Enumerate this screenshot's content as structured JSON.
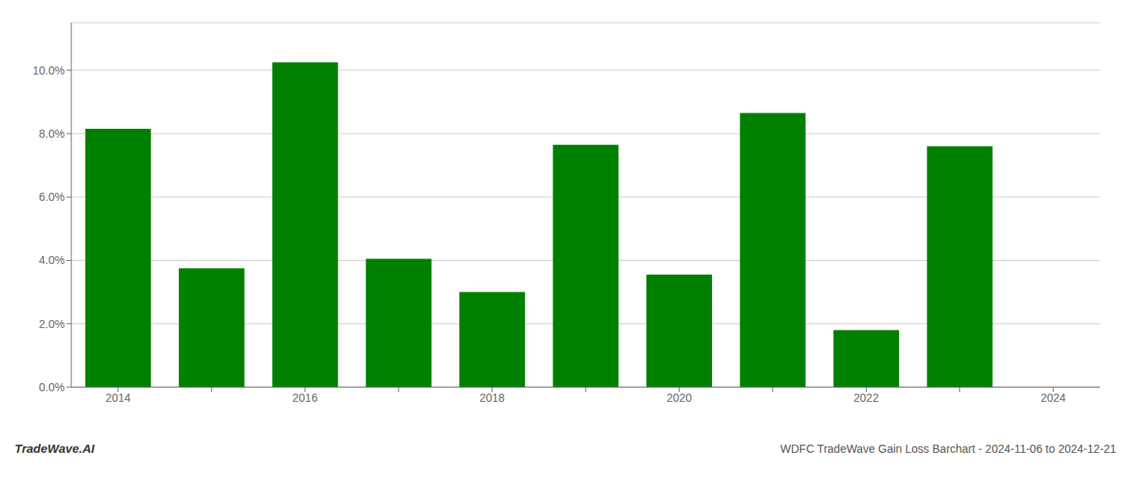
{
  "chart_data": {
    "type": "bar",
    "categories": [
      "2014",
      null,
      "2016",
      null,
      "2018",
      null,
      "2020",
      null,
      "2022",
      null,
      "2024"
    ],
    "values": [
      0.0815,
      0.0375,
      0.1025,
      0.0405,
      0.03,
      0.0765,
      0.0355,
      0.0865,
      0.018,
      0.076,
      null
    ],
    "color": "#008000",
    "ylim": [
      0,
      0.115
    ],
    "yticks": [
      {
        "value": 0.0,
        "label": "0.0%"
      },
      {
        "value": 0.02,
        "label": "2.0%"
      },
      {
        "value": 0.04,
        "label": "4.0%"
      },
      {
        "value": 0.06,
        "label": "6.0%"
      },
      {
        "value": 0.08,
        "label": "8.0%"
      },
      {
        "value": 0.1,
        "label": "10.0%"
      }
    ],
    "grid": true,
    "annotations": [
      "TradeWave.AI",
      "WDFC TradeWave Gain Loss Barchart - 2024-11-06 to 2024-12-21"
    ]
  }
}
